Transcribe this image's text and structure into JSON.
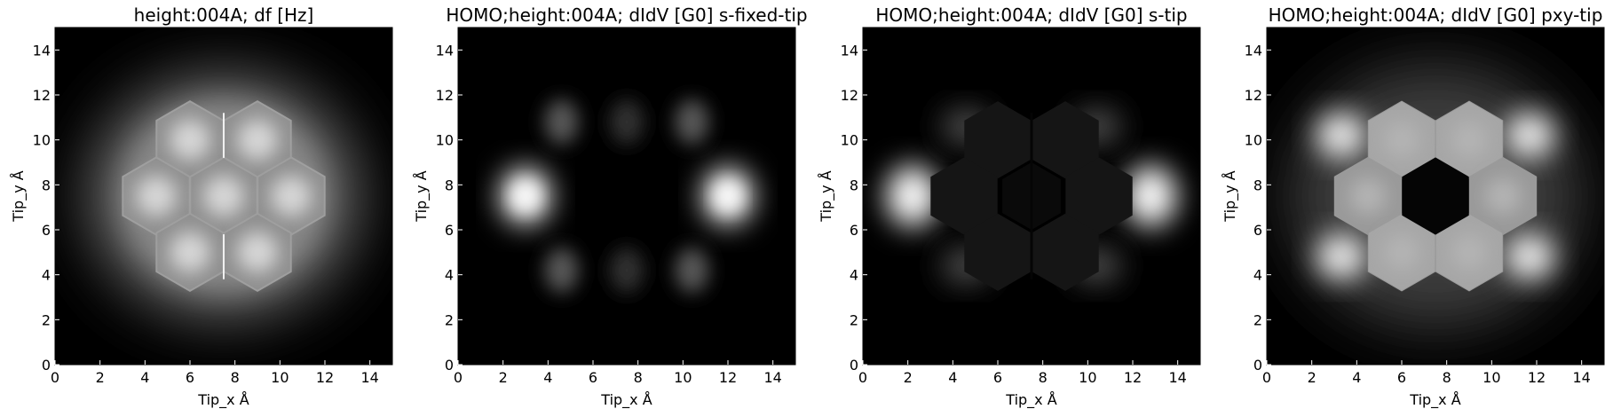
{
  "chart_data": [
    {
      "type": "heatmap",
      "title": "height:004A; df [Hz]",
      "xlabel": "Tip_x Å",
      "ylabel": "Tip_y Å",
      "xlim": [
        0,
        15
      ],
      "ylim": [
        0,
        15
      ],
      "xticks": [
        "0",
        "2",
        "4",
        "6",
        "8",
        "10",
        "12",
        "14"
      ],
      "yticks": [
        "0",
        "2",
        "4",
        "6",
        "8",
        "10",
        "12",
        "14"
      ],
      "colormap": "gray",
      "pattern": "df-hexagons",
      "features": [
        {
          "x": 6.0,
          "y": 10.0
        },
        {
          "x": 9.0,
          "y": 10.0
        },
        {
          "x": 4.5,
          "y": 7.5
        },
        {
          "x": 7.5,
          "y": 7.5
        },
        {
          "x": 10.5,
          "y": 7.5
        },
        {
          "x": 6.0,
          "y": 5.0
        },
        {
          "x": 9.0,
          "y": 5.0
        }
      ]
    },
    {
      "type": "heatmap",
      "title": "HOMO;height:004A; dIdV [G0] s-fixed-tip",
      "xlabel": "Tip_x Å",
      "ylabel": "Tip_y Å",
      "xlim": [
        0,
        15
      ],
      "ylim": [
        0,
        15
      ],
      "xticks": [
        "0",
        "2",
        "4",
        "6",
        "8",
        "10",
        "12",
        "14"
      ],
      "yticks": [
        "0",
        "2",
        "4",
        "6",
        "8",
        "10",
        "12",
        "14"
      ],
      "colormap": "gray",
      "pattern": "lobes",
      "features": [
        {
          "x": 3.0,
          "y": 7.5,
          "v": 1.0
        },
        {
          "x": 12.0,
          "y": 7.5,
          "v": 1.0
        },
        {
          "x": 4.6,
          "y": 10.8,
          "v": 0.35
        },
        {
          "x": 10.4,
          "y": 10.8,
          "v": 0.35
        },
        {
          "x": 4.6,
          "y": 4.2,
          "v": 0.35
        },
        {
          "x": 10.4,
          "y": 4.2,
          "v": 0.35
        },
        {
          "x": 7.5,
          "y": 10.8,
          "v": 0.2
        },
        {
          "x": 7.5,
          "y": 4.2,
          "v": 0.2
        }
      ]
    },
    {
      "type": "heatmap",
      "title": "HOMO;height:004A; dIdV [G0] s-tip",
      "xlabel": "Tip_x Å",
      "ylabel": "Tip_y Å",
      "xlim": [
        0,
        15
      ],
      "ylim": [
        0,
        15
      ],
      "xticks": [
        "0",
        "2",
        "4",
        "6",
        "8",
        "10",
        "12",
        "14"
      ],
      "yticks": [
        "0",
        "2",
        "4",
        "6",
        "8",
        "10",
        "12",
        "14"
      ],
      "colormap": "gray",
      "pattern": "s-tip",
      "features": [
        {
          "x": 2.2,
          "y": 7.5,
          "v": 1.0
        },
        {
          "x": 12.8,
          "y": 7.5,
          "v": 1.0
        },
        {
          "x": 4.6,
          "y": 10.6,
          "v": 0.3
        },
        {
          "x": 10.4,
          "y": 10.6,
          "v": 0.3
        },
        {
          "x": 4.6,
          "y": 4.4,
          "v": 0.3
        },
        {
          "x": 10.4,
          "y": 4.4,
          "v": 0.3
        }
      ]
    },
    {
      "type": "heatmap",
      "title": "HOMO;height:004A; dIdV [G0] pxy-tip",
      "xlabel": "Tip_x Å",
      "ylabel": "Tip_y Å",
      "xlim": [
        0,
        15
      ],
      "ylim": [
        0,
        15
      ],
      "xticks": [
        "0",
        "2",
        "4",
        "6",
        "8",
        "10",
        "12",
        "14"
      ],
      "yticks": [
        "0",
        "2",
        "4",
        "6",
        "8",
        "10",
        "12",
        "14"
      ],
      "colormap": "gray",
      "pattern": "pxy-tip",
      "features": [
        {
          "x": 6.0,
          "y": 10.0,
          "v": 0.65
        },
        {
          "x": 9.0,
          "y": 10.0,
          "v": 0.65
        },
        {
          "x": 4.5,
          "y": 7.5,
          "v": 0.6
        },
        {
          "x": 10.5,
          "y": 7.5,
          "v": 0.6
        },
        {
          "x": 6.0,
          "y": 5.0,
          "v": 0.65
        },
        {
          "x": 9.0,
          "y": 5.0,
          "v": 0.65
        },
        {
          "x": 3.3,
          "y": 10.2,
          "v": 1.0
        },
        {
          "x": 11.7,
          "y": 10.2,
          "v": 1.0
        },
        {
          "x": 3.3,
          "y": 4.8,
          "v": 1.0
        },
        {
          "x": 11.7,
          "y": 4.8,
          "v": 1.0
        }
      ]
    }
  ]
}
